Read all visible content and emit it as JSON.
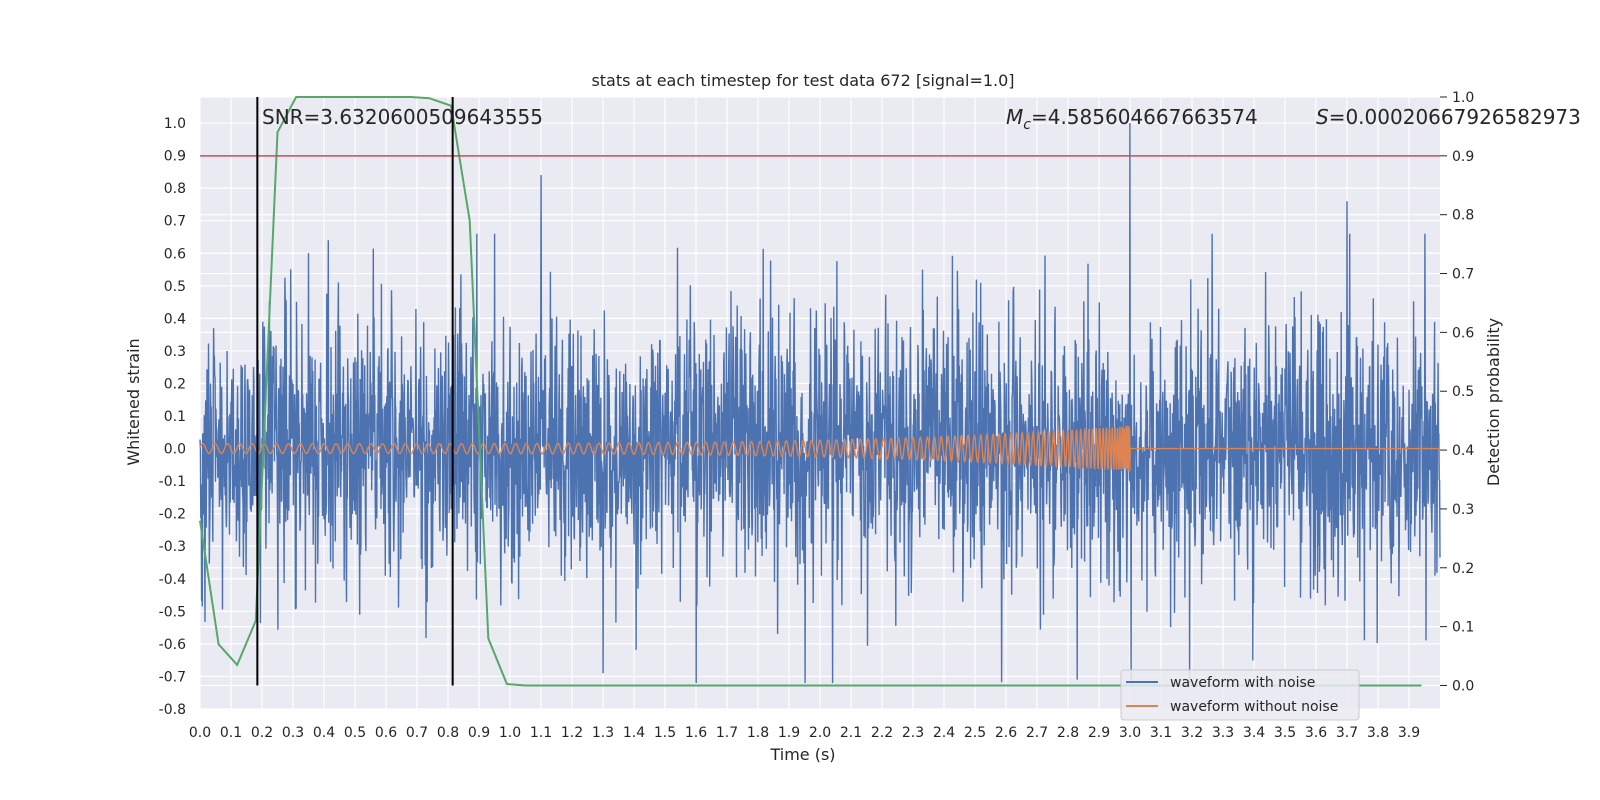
{
  "chart_data": {
    "type": "line",
    "title": "stats at each timestep for test data 672 [signal=1.0]",
    "xlabel": "Time (s)",
    "ylabel": "Whitened strain",
    "y2label": "Detection probability",
    "xlim": [
      0.0,
      4.0
    ],
    "ylim": [
      -0.8,
      1.08
    ],
    "y2lim": [
      -0.04,
      1.0
    ],
    "x_ticks": [
      0.0,
      0.1,
      0.2,
      0.3,
      0.4,
      0.5,
      0.6,
      0.7,
      0.8,
      0.9,
      1.0,
      1.1,
      1.2,
      1.3,
      1.4,
      1.5,
      1.6,
      1.7,
      1.8,
      1.9,
      2.0,
      2.1,
      2.2,
      2.3,
      2.4,
      2.5,
      2.6,
      2.7,
      2.8,
      2.9,
      3.0,
      3.1,
      3.2,
      3.3,
      3.4,
      3.5,
      3.6,
      3.7,
      3.8,
      3.9
    ],
    "y_ticks": [
      -0.8,
      -0.7,
      -0.6,
      -0.5,
      -0.4,
      -0.3,
      -0.2,
      -0.1,
      0.0,
      0.1,
      0.2,
      0.3,
      0.4,
      0.5,
      0.6,
      0.7,
      0.8,
      0.9,
      1.0
    ],
    "y2_ticks": [
      0.0,
      0.1,
      0.2,
      0.3,
      0.4,
      0.5,
      0.6,
      0.7,
      0.8,
      0.9,
      1.0
    ],
    "grid": true,
    "legend_placement": "bottom-right",
    "annotations": {
      "snr": "SNR=3.6320600509643555",
      "mc_symbol": "M",
      "mc_sub": "c",
      "mc_value": "=4.585604667663574",
      "s_symbol": "S",
      "s_value": "=0.00020667926582973"
    },
    "series": [
      {
        "name": "waveform with noise",
        "color": "#4c72b0",
        "description_mode": "noise",
        "amplitude_range": [
          -0.72,
          1.0
        ],
        "peak_spikes": [
          {
            "x": 1.1,
            "y": 0.84
          },
          {
            "x": 3.0,
            "y": 1.0
          },
          {
            "x": 3.7,
            "y": 0.76
          },
          {
            "x": 1.6,
            "y": -0.72
          },
          {
            "x": 2.83,
            "y": -0.71
          },
          {
            "x": 1.3,
            "y": -0.69
          }
        ]
      },
      {
        "name": "waveform without noise",
        "color": "#dd8452",
        "chirp_end": 3.0,
        "amplitude_start": 0.015,
        "amplitude_end": 0.07
      },
      {
        "name": "detection probability",
        "color": "#55a868",
        "axis": "y2",
        "x": [
          0.0,
          0.06,
          0.12,
          0.18,
          0.25,
          0.31,
          0.37,
          0.43,
          0.49,
          0.56,
          0.62,
          0.68,
          0.74,
          0.81,
          0.87,
          0.93,
          0.99,
          1.05,
          1.11,
          1.17,
          1.5,
          2.0,
          2.5,
          3.0,
          3.5,
          3.94
        ],
        "y": [
          0.28,
          0.07,
          0.035,
          0.11,
          0.94,
          1.0,
          1.0,
          1.0,
          1.0,
          1.0,
          1.0,
          1.0,
          0.998,
          0.985,
          0.79,
          0.08,
          0.0025,
          0.0,
          0.0,
          0.0,
          0.0,
          0.0,
          0.0,
          0.0,
          0.0,
          0.0
        ]
      }
    ],
    "vlines": [
      {
        "x": 0.185,
        "color": "#000000",
        "label": ""
      },
      {
        "x": 0.815,
        "color": "#000000",
        "label": ""
      }
    ],
    "hlines": [
      {
        "y2": 0.9,
        "color": "#c44e52"
      }
    ]
  }
}
